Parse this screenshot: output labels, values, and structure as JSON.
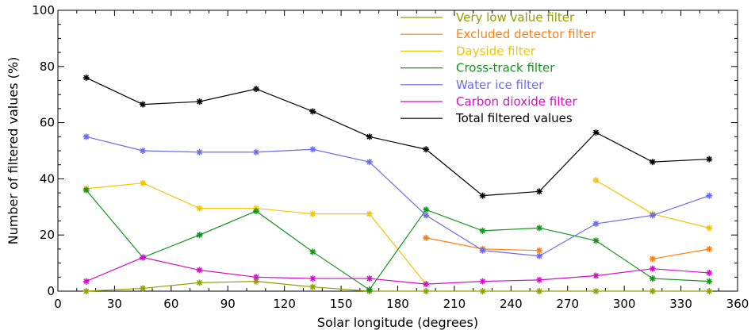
{
  "chart_data": {
    "type": "line",
    "xlabel": "Solar longitude (degrees)",
    "ylabel": "Number of filtered values (%)",
    "xlim": [
      0,
      360
    ],
    "ylim": [
      0,
      100
    ],
    "xticks": [
      0,
      30,
      60,
      90,
      120,
      150,
      180,
      210,
      240,
      270,
      300,
      330,
      360
    ],
    "yticks": [
      0,
      20,
      40,
      60,
      80,
      100
    ],
    "grid": false,
    "legend_position": "top-center",
    "marker": "asterisk",
    "x": [
      15,
      45,
      75,
      105,
      135,
      165,
      195,
      225,
      255,
      285,
      315,
      345
    ],
    "series": [
      {
        "name": "Very low value filter",
        "color": "#8fa000",
        "values": [
          0,
          1,
          3,
          3.5,
          1.5,
          0,
          0,
          0,
          0,
          0,
          0,
          0
        ]
      },
      {
        "name": "Excluded detector filter",
        "color": "#ff7f0e",
        "values": [
          null,
          null,
          null,
          null,
          null,
          null,
          19,
          15,
          14.5,
          null,
          11.5,
          15
        ]
      },
      {
        "name": "Dayside filter",
        "color": "#f5c400",
        "values": [
          36.5,
          38.5,
          29.5,
          29.5,
          27.5,
          27.5,
          2.5,
          null,
          null,
          39.5,
          27.5,
          22.5
        ]
      },
      {
        "name": "Cross-track filter",
        "color": "#13951d",
        "values": [
          36,
          12,
          20,
          28.5,
          14,
          0.5,
          29,
          21.5,
          22.5,
          18,
          4.5,
          3.5
        ]
      },
      {
        "name": "Water ice filter",
        "color": "#6b6bee",
        "values": [
          55,
          50,
          49.5,
          49.5,
          50.5,
          46,
          27,
          14.5,
          12.5,
          24,
          27,
          34
        ]
      },
      {
        "name": "Carbon dioxide filter",
        "color": "#d10fc7",
        "values": [
          3.5,
          12,
          7.5,
          5,
          4.5,
          4.5,
          2.5,
          3.5,
          4,
          5.5,
          8,
          6.5
        ]
      },
      {
        "name": "Total filtered values",
        "color": "#000000",
        "values": [
          76,
          66.5,
          67.5,
          72,
          64,
          55,
          50.5,
          34,
          35.5,
          56.5,
          46,
          47
        ]
      }
    ]
  }
}
